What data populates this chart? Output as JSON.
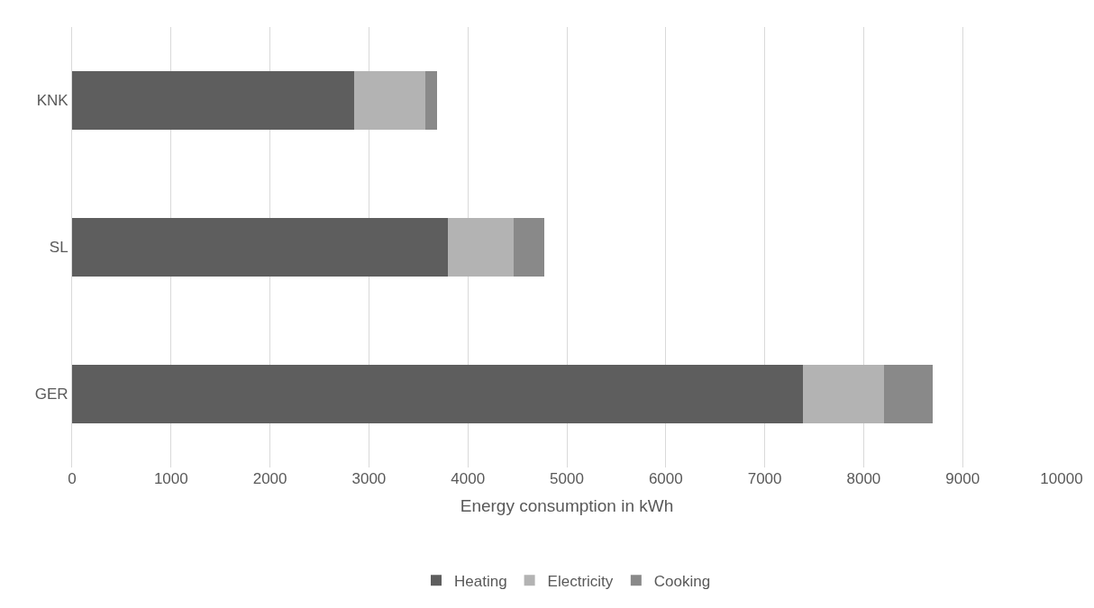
{
  "chart_data": {
    "type": "bar",
    "orientation": "horizontal",
    "stacked": true,
    "xlabel": "Energy consumption in kWh",
    "categories": [
      "KNK",
      "SL",
      "GER"
    ],
    "series": [
      {
        "name": "Heating",
        "color": "#5e5e5e",
        "values": [
          2850,
          3800,
          7390
        ]
      },
      {
        "name": "Electricity",
        "color": "#b3b3b3",
        "values": [
          720,
          660,
          820
        ]
      },
      {
        "name": "Cooking",
        "color": "#898989",
        "values": [
          120,
          310,
          490
        ]
      }
    ],
    "xlim": [
      0,
      10000
    ],
    "xticks": [
      0,
      1000,
      2000,
      3000,
      4000,
      5000,
      6000,
      7000,
      8000,
      9000,
      10000
    ],
    "grid": "x",
    "legend": "bottom"
  }
}
